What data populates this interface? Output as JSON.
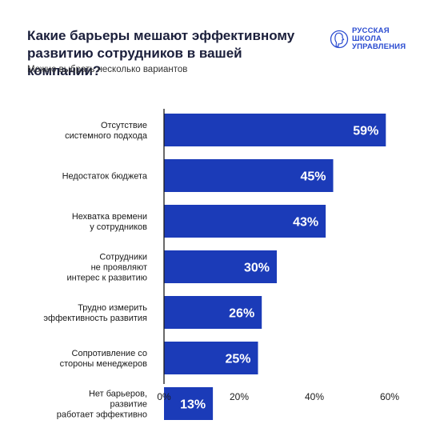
{
  "header": {
    "title": "Какие барьеры мешают эффективному развитию сотрудников в вашей компании?",
    "subtitle": "Можно выбрать несколько вариантов"
  },
  "logo": {
    "lines": [
      "РУССКАЯ",
      "ШКОЛА",
      "УПРАВЛЕНИЯ"
    ],
    "icon": "head-profile-icon"
  },
  "colors": {
    "bar": "#1b3bb8",
    "axis": "#1a1a1a",
    "logo": "#2a4bd0"
  },
  "chart_data": {
    "type": "bar",
    "orientation": "horizontal",
    "categories": [
      [
        "Отсутствие",
        "системного подхода"
      ],
      [
        "Недостаток бюджета"
      ],
      [
        "Нехватка времени",
        "у сотрудников"
      ],
      [
        "Сотрудники",
        "не проявляют",
        "интерес к развитию"
      ],
      [
        "Трудно измерить",
        "эффективность развития"
      ],
      [
        "Сопротивление со",
        "стороны менеджеров"
      ],
      [
        "Нет барьеров,",
        "развитие",
        "работает эффективно"
      ]
    ],
    "values": [
      59,
      45,
      43,
      30,
      26,
      25,
      13
    ],
    "data_labels": [
      "59%",
      "45%",
      "43%",
      "30%",
      "26%",
      "25%",
      "13%"
    ],
    "xlim": [
      0,
      60
    ],
    "x_ticks": [
      0,
      20,
      40,
      60
    ],
    "x_tick_labels": [
      "0%",
      "20%",
      "40%",
      "60%"
    ],
    "grid": false
  }
}
